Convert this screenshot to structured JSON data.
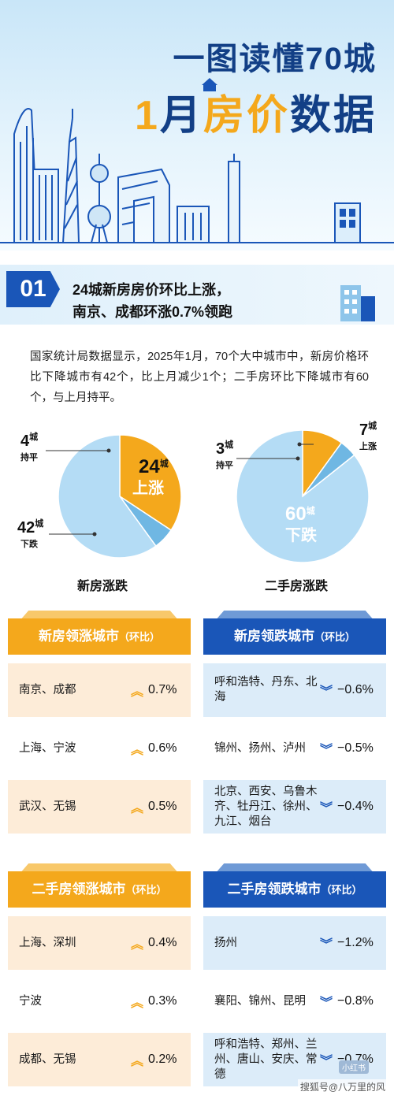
{
  "header": {
    "title_line1": "一图读懂70城",
    "title_num": "1",
    "title_month": "月",
    "title_highlight": "房价",
    "title_rest": "数据"
  },
  "section": {
    "number": "01",
    "heading_line1": "24城新房房价环比上涨，",
    "heading_line2": "南京、成都环涨0.7%领跑"
  },
  "intro": "国家统计局数据显示，2025年1月，70个大中城市中，新房价格环比下降城市有42个，比上月减少1个；二手房环比下降城市有60个，与上月持平。",
  "chart_data": [
    {
      "type": "pie",
      "title": "新房涨跌",
      "series": [
        {
          "name": "上涨",
          "value": 24,
          "color": "#f4a81c"
        },
        {
          "name": "持平",
          "value": 4,
          "color": "#6fb7e3"
        },
        {
          "name": "下跌",
          "value": 42,
          "color": "#b4dcf5"
        }
      ],
      "labels": [
        {
          "num": "24",
          "unit": "城",
          "word": "上涨"
        },
        {
          "num": "4",
          "unit": "城",
          "word": "持平"
        },
        {
          "num": "42",
          "unit": "城",
          "word": "下跌"
        }
      ]
    },
    {
      "type": "pie",
      "title": "二手房涨跌",
      "series": [
        {
          "name": "上涨",
          "value": 7,
          "color": "#f4a81c"
        },
        {
          "name": "持平",
          "value": 3,
          "color": "#6fb7e3"
        },
        {
          "name": "下跌",
          "value": 60,
          "color": "#b4dcf5"
        }
      ],
      "labels": [
        {
          "num": "7",
          "unit": "城",
          "word": "上涨"
        },
        {
          "num": "3",
          "unit": "城",
          "word": "持平"
        },
        {
          "num": "60",
          "unit": "城",
          "word": "下跌"
        }
      ]
    }
  ],
  "tables": {
    "new_up": {
      "title": "新房领涨城市",
      "sub": "（环比）",
      "rows": [
        {
          "cities": "南京、成都",
          "value": "0.7%"
        },
        {
          "cities": "上海、宁波",
          "value": "0.6%"
        },
        {
          "cities": "武汉、无锡",
          "value": "0.5%"
        }
      ]
    },
    "new_down": {
      "title": "新房领跌城市",
      "sub": "（环比）",
      "rows": [
        {
          "cities": "呼和浩特、丹东、北海",
          "value": "−0.6%"
        },
        {
          "cities": "锦州、扬州、泸州",
          "value": "−0.5%"
        },
        {
          "cities": "北京、西安、乌鲁木齐、牡丹江、徐州、九江、烟台",
          "value": "−0.4%"
        }
      ]
    },
    "used_up": {
      "title": "二手房领涨城市",
      "sub": "（环比）",
      "rows": [
        {
          "cities": "上海、深圳",
          "value": "0.4%"
        },
        {
          "cities": "宁波",
          "value": "0.3%"
        },
        {
          "cities": "成都、无锡",
          "value": "0.2%"
        }
      ]
    },
    "used_down": {
      "title": "二手房领跌城市",
      "sub": "（环比）",
      "rows": [
        {
          "cities": "扬州",
          "value": "−1.2%"
        },
        {
          "cities": "襄阳、锦州、昆明",
          "value": "−0.8%"
        },
        {
          "cities": "呼和浩特、郑州、兰州、唐山、安庆、常德",
          "value": "−0.7%"
        }
      ]
    }
  },
  "icons": {
    "up": "double-chevron-up-icon",
    "down": "double-chevron-down-icon"
  },
  "stamp": "小红书",
  "watermark": "搜狐号@八万里的风"
}
